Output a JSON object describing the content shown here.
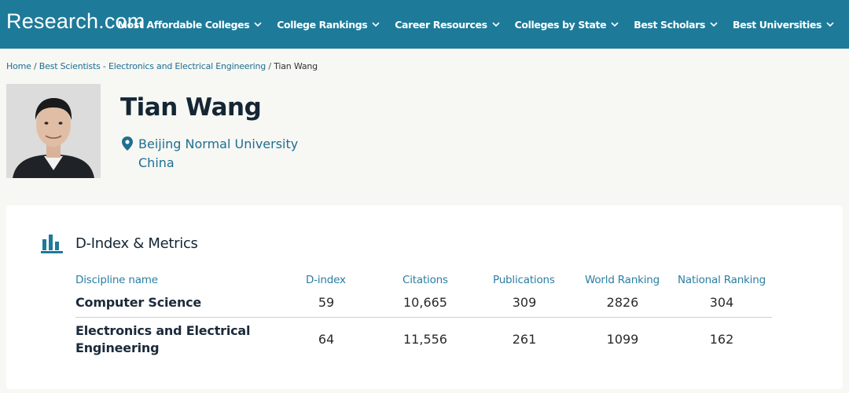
{
  "header": {
    "logo": "Research.com",
    "nav": [
      "Most Affordable Colleges",
      "College Rankings",
      "Career Resources",
      "Colleges by State",
      "Best Scholars",
      "Best Universities"
    ]
  },
  "breadcrumb": {
    "home": "Home",
    "category": "Best Scientists - Electronics and Electrical Engineering",
    "current": "Tian Wang",
    "separator": "/"
  },
  "profile": {
    "name": "Tian Wang",
    "university": "Beijing Normal University",
    "country": "China"
  },
  "metrics": {
    "title": "D-Index & Metrics",
    "columns": [
      "Discipline name",
      "D-index",
      "Citations",
      "Publications",
      "World Ranking",
      "National Ranking"
    ],
    "rows": [
      {
        "discipline": "Computer Science",
        "d_index": "59",
        "citations": "10,665",
        "publications": "309",
        "world_ranking": "2826",
        "national_ranking": "304"
      },
      {
        "discipline_line1": "Electronics and Electrical",
        "discipline_line2": "Engineering",
        "d_index": "64",
        "citations": "11,556",
        "publications": "261",
        "world_ranking": "1099",
        "national_ranking": "162"
      }
    ]
  },
  "colors": {
    "header_bg": "#1e7a99",
    "link": "#1e6f91",
    "accent": "#2a7ea3"
  }
}
